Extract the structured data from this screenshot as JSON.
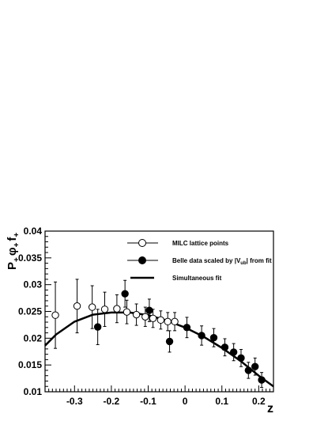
{
  "chart_data": {
    "type": "scatter",
    "xlabel": "z",
    "ylabel_parts": {
      "p": "P",
      "p_sub": "+",
      "phi": "φ",
      "phi_sub": "+",
      "f": "f",
      "f_sub": "+"
    },
    "xlim": [
      -0.38,
      0.24
    ],
    "ylim": [
      0.01,
      0.04
    ],
    "x_ticks": [
      -0.3,
      -0.2,
      -0.1,
      0,
      0.1,
      0.2
    ],
    "x_tick_labels": [
      "-0.3",
      "-0.2",
      "-0.1",
      "0",
      "0.1",
      "0.2"
    ],
    "y_ticks": [
      0.01,
      0.015,
      0.02,
      0.025,
      0.03,
      0.035,
      0.04
    ],
    "y_tick_labels": [
      "0.01",
      "0.015",
      "0.02",
      "0.025",
      "0.03",
      "0.035",
      "0.04"
    ],
    "legend": {
      "position": "top-right",
      "entries": [
        {
          "marker": "open-circle",
          "label": "MILC lattice points"
        },
        {
          "marker": "filled-circle",
          "label_main": "Belle data scaled by |V",
          "label_sub": "ub",
          "label_end": "| from fit"
        },
        {
          "marker": "line",
          "label": "Simultaneous fit"
        }
      ]
    },
    "series": [
      {
        "name": "MILC lattice points",
        "marker": "open-circle",
        "points": [
          {
            "x": -0.352,
            "y": 0.0243,
            "err": 0.0062
          },
          {
            "x": -0.293,
            "y": 0.026,
            "err": 0.005
          },
          {
            "x": -0.252,
            "y": 0.0258,
            "err": 0.004
          },
          {
            "x": -0.218,
            "y": 0.0254,
            "err": 0.0032
          },
          {
            "x": -0.185,
            "y": 0.0255,
            "err": 0.0026
          },
          {
            "x": -0.158,
            "y": 0.0249,
            "err": 0.0022
          },
          {
            "x": -0.132,
            "y": 0.0244,
            "err": 0.002
          },
          {
            "x": -0.108,
            "y": 0.024,
            "err": 0.0018
          },
          {
            "x": -0.087,
            "y": 0.0237,
            "err": 0.0017
          },
          {
            "x": -0.066,
            "y": 0.0234,
            "err": 0.0017
          },
          {
            "x": -0.047,
            "y": 0.0231,
            "err": 0.0017
          },
          {
            "x": -0.028,
            "y": 0.0231,
            "err": 0.0017
          }
        ]
      },
      {
        "name": "Belle data scaled by |Vub| from fit",
        "marker": "filled-circle",
        "points": [
          {
            "x": -0.237,
            "y": 0.0221,
            "err": 0.0033
          },
          {
            "x": -0.163,
            "y": 0.0283,
            "err": 0.0025
          },
          {
            "x": -0.097,
            "y": 0.0252,
            "err": 0.0021
          },
          {
            "x": -0.042,
            "y": 0.0194,
            "err": 0.002
          },
          {
            "x": 0.005,
            "y": 0.022,
            "err": 0.0019
          },
          {
            "x": 0.045,
            "y": 0.0205,
            "err": 0.0018
          },
          {
            "x": 0.078,
            "y": 0.0201,
            "err": 0.0017
          },
          {
            "x": 0.108,
            "y": 0.0183,
            "err": 0.0016
          },
          {
            "x": 0.132,
            "y": 0.0174,
            "err": 0.0016
          },
          {
            "x": 0.152,
            "y": 0.0163,
            "err": 0.0016
          },
          {
            "x": 0.172,
            "y": 0.014,
            "err": 0.0015
          },
          {
            "x": 0.19,
            "y": 0.0147,
            "err": 0.0016
          },
          {
            "x": 0.208,
            "y": 0.0122,
            "err": 0.0014
          }
        ]
      },
      {
        "name": "Simultaneous fit",
        "marker": "line",
        "points": [
          {
            "x": -0.38,
            "y": 0.0186
          },
          {
            "x": -0.35,
            "y": 0.0207
          },
          {
            "x": -0.3,
            "y": 0.0231
          },
          {
            "x": -0.25,
            "y": 0.0244
          },
          {
            "x": -0.2,
            "y": 0.0248
          },
          {
            "x": -0.15,
            "y": 0.0248
          },
          {
            "x": -0.1,
            "y": 0.0243
          },
          {
            "x": -0.05,
            "y": 0.0233
          },
          {
            "x": 0.0,
            "y": 0.022
          },
          {
            "x": 0.05,
            "y": 0.0203
          },
          {
            "x": 0.1,
            "y": 0.0182
          },
          {
            "x": 0.15,
            "y": 0.0158
          },
          {
            "x": 0.2,
            "y": 0.013
          },
          {
            "x": 0.24,
            "y": 0.011
          }
        ]
      }
    ]
  }
}
